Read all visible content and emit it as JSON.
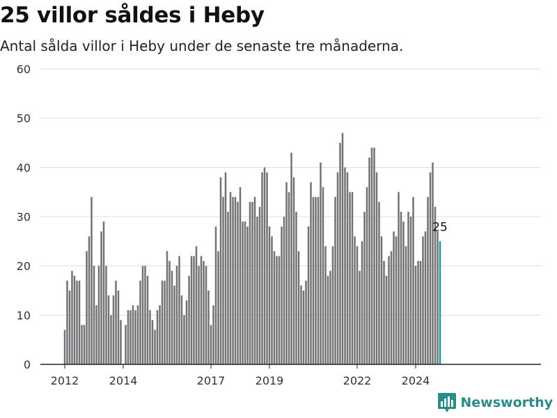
{
  "title": "25 villor såldes i Heby",
  "subtitle": "Antal sålda villor i Heby under de senaste tre månaderna.",
  "brand": {
    "name": "Newsworthy",
    "color": "#2a8c87",
    "icon": "newsworthy-logo-icon"
  },
  "colors": {
    "bar": "#727176",
    "highlight": "#1a9a8f",
    "grid": "#dddddd",
    "axis": "#222222"
  },
  "chart_data": {
    "type": "bar",
    "x_start": "2012-01",
    "x_end": "2024-12",
    "ylim": [
      0,
      60
    ],
    "y_ticks": [
      0,
      10,
      20,
      30,
      40,
      50,
      60
    ],
    "x_ticks": [
      {
        "label": "2012",
        "date": "2012-01"
      },
      {
        "label": "2014",
        "date": "2014-01"
      },
      {
        "label": "2017",
        "date": "2017-01"
      },
      {
        "label": "2019",
        "date": "2019-01"
      },
      {
        "label": "2022",
        "date": "2022-01"
      },
      {
        "label": "2024",
        "date": "2024-01"
      }
    ],
    "highlight_label": "25",
    "grid": true,
    "values": [
      7,
      17,
      15,
      19,
      18,
      17,
      17,
      8,
      8,
      23,
      26,
      34,
      20,
      12,
      20,
      27,
      29,
      20,
      14,
      10,
      14,
      17,
      15,
      9,
      0,
      8,
      11,
      11,
      12,
      11,
      12,
      17,
      20,
      20,
      18,
      11,
      9,
      7,
      11,
      12,
      17,
      17,
      23,
      21,
      19,
      16,
      20,
      22,
      14,
      10,
      13,
      18,
      22,
      22,
      24,
      20,
      22,
      21,
      20,
      15,
      8,
      12,
      28,
      23,
      38,
      34,
      39,
      31,
      35,
      34,
      34,
      33,
      36,
      29,
      29,
      28,
      33,
      33,
      34,
      30,
      32,
      39,
      40,
      39,
      28,
      26,
      23,
      22,
      22,
      28,
      30,
      37,
      35,
      43,
      38,
      31,
      23,
      16,
      15,
      17,
      28,
      37,
      34,
      34,
      34,
      41,
      36,
      24,
      18,
      19,
      24,
      34,
      39,
      45,
      47,
      40,
      39,
      35,
      35,
      26,
      24,
      19,
      25,
      31,
      36,
      42,
      44,
      44,
      39,
      33,
      26,
      21,
      18,
      22,
      23,
      27,
      26,
      35,
      31,
      29,
      24,
      31,
      30,
      34,
      20,
      21,
      21,
      26,
      27,
      34,
      39,
      41,
      32,
      27,
      25
    ]
  }
}
